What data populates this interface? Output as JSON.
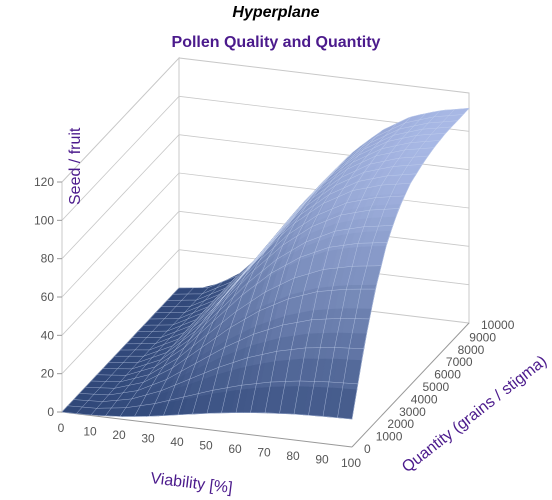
{
  "chart_data": {
    "type": "surface",
    "title": "Hyperplane",
    "subtitle": "Pollen Quality and Quantity",
    "zlabel": "Seed / fruit",
    "xlabel": "Viability [%]",
    "ylabel": "Quantity (grains / stigma)",
    "x_ticks": [
      "0",
      "10",
      "20",
      "30",
      "40",
      "50",
      "60",
      "70",
      "80",
      "90",
      "100"
    ],
    "y_ticks": [
      "0",
      "1000",
      "2000",
      "3000",
      "4000",
      "5000",
      "6000",
      "7000",
      "8000",
      "9000",
      "10000"
    ],
    "z_ticks": [
      "0",
      "20",
      "40",
      "60",
      "80",
      "100",
      "120"
    ],
    "xlim": [
      0,
      100
    ],
    "ylim": [
      0,
      10000
    ],
    "zlim": [
      0,
      120
    ],
    "z_at_viability": {
      "x": [
        0,
        10,
        20,
        30,
        40,
        50,
        60,
        70,
        80,
        90,
        100
      ],
      "z": [
        0,
        2,
        10,
        25,
        45,
        65,
        82,
        95,
        104,
        109,
        112
      ]
    },
    "z_at_quantity": {
      "y": [
        0,
        1000,
        2000,
        3000,
        4000,
        5000,
        6000,
        7000,
        8000,
        9000,
        10000
      ],
      "z": [
        0.13,
        0.4,
        0.62,
        0.78,
        0.88,
        0.94,
        0.97,
        0.99,
        1.0,
        1.0,
        1.0
      ]
    },
    "grid": true,
    "colors": {
      "surface_low": "#1b3466",
      "surface_high": "#a9b9e6",
      "mesh": "#c8d4f0",
      "axis_label": "#4b1a8c",
      "tick_label": "#555555",
      "wall_grid": "#c8c8c8"
    }
  }
}
